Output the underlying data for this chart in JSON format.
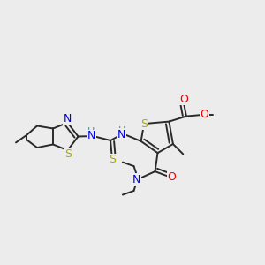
{
  "bg_color": "#ececec",
  "line_color": "#2a2a2a",
  "line_width": 1.4,
  "atom_colors": {
    "S": "#aaaa00",
    "N": "#0000ee",
    "O": "#ee0000",
    "H": "#4a9090",
    "C": "#2a2a2a"
  }
}
